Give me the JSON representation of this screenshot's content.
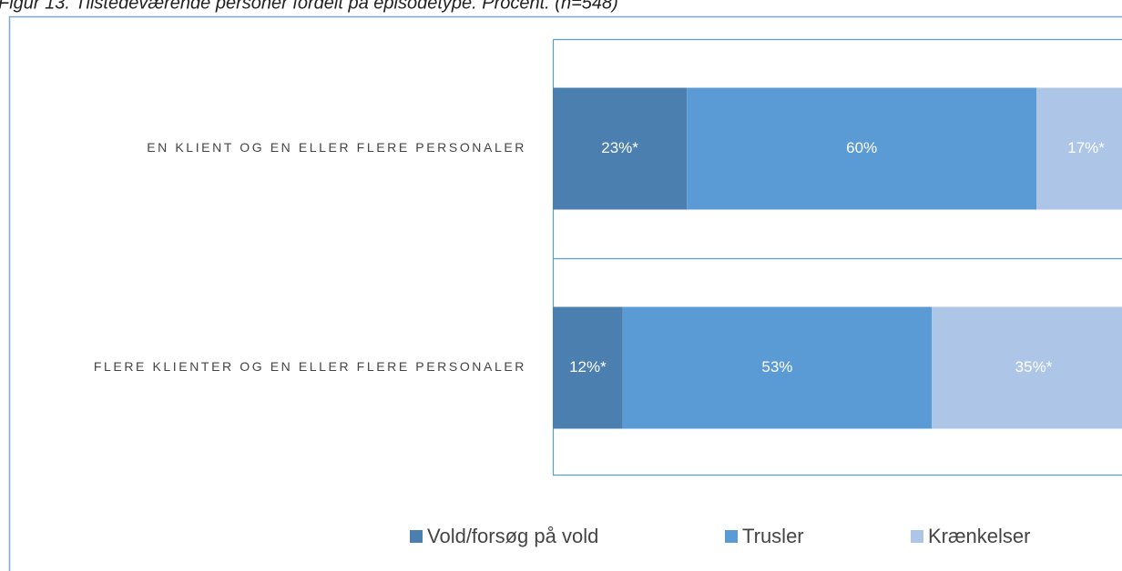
{
  "chart_data": {
    "type": "stacked_bar_horizontal",
    "title": "Figur 13. Tilstedeværende personer fordelt på episodetype. Procent. (n=548)",
    "categories": [
      "EN KLIENT OG EN ELLER FLERE PERSONALER",
      "FLERE KLIENTER OG EN ELLER FLERE PERSONALER"
    ],
    "series": [
      {
        "name": "Vold/forsøg på vold",
        "color": "#4a7fb0",
        "values": [
          23,
          12
        ],
        "value_labels": [
          "23%*",
          "12%*"
        ]
      },
      {
        "name": "Trusler",
        "color": "#5b9bd5",
        "values": [
          60,
          53
        ],
        "value_labels": [
          "60%",
          "53%"
        ]
      },
      {
        "name": "Krænkelser",
        "color": "#adc5e6",
        "values": [
          17,
          35
        ],
        "value_labels": [
          "17%*",
          "35%*"
        ]
      }
    ],
    "xlim": [
      0,
      100
    ],
    "legend": "bottom"
  }
}
